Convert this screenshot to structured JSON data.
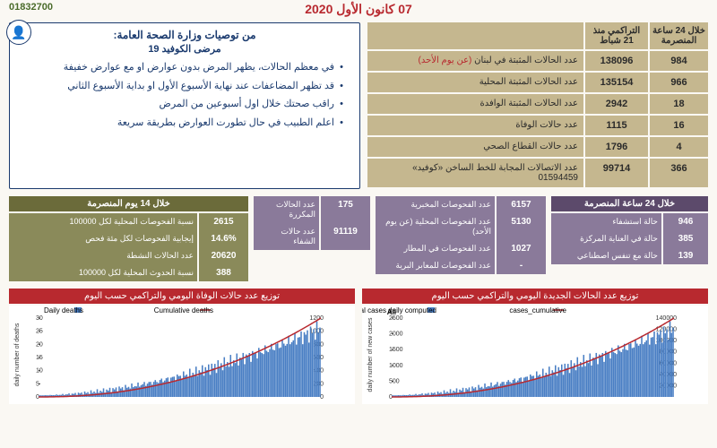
{
  "phone": "01832700",
  "date": "07 كانون الأول 2020",
  "mainStats": {
    "headers": {
      "c1": "خلال 24 ساعة المنصرمة",
      "c2": "التراكمي منذ 21 شباط"
    },
    "rows": [
      {
        "daily": "984",
        "cum": "138096",
        "label": "عدد الحالات المثبتة في لبنان",
        "labelRed": "(عن يوم الأحد)"
      },
      {
        "daily": "966",
        "cum": "135154",
        "label": "عدد الحالات المثبتة المحلية"
      },
      {
        "daily": "18",
        "cum": "2942",
        "label": "عدد الحالات المثبتة الوافدة"
      },
      {
        "daily": "16",
        "cum": "1115",
        "label": "عدد حالات الوفاة"
      },
      {
        "daily": "4",
        "cum": "1796",
        "label": "عدد حالات القطاع الصحي"
      },
      {
        "daily": "366",
        "cum": "99714",
        "label": "عدد الاتصالات المجابة للخط الساخن «كوفيد» 01594459"
      }
    ]
  },
  "reco": {
    "title": "من توصيات وزارة الصحة العامة:",
    "sub": "مرضى الكوفيد 19",
    "items": [
      "في معظم الحالات، يظهر المرض بدون عوارض او مع عوارض خفيفة",
      "قد تظهر المضاعفات عند نهاية الأسبوع الأول او بداية الأسبوع الثاني",
      "راقب صحتك خلال اول أسبوعين من المرض",
      "اعلم الطبيب في حال تطورت العوارض بطريقة سريعة"
    ]
  },
  "block24h": {
    "head": "خلال 24 ساعة المنصرمة",
    "rows": [
      {
        "n": "946",
        "l": "حالة استشفاء"
      },
      {
        "n": "385",
        "l": "حالة في العناية المركزة"
      },
      {
        "n": "139",
        "l": "حالة مع تنفس اصطناعي"
      }
    ]
  },
  "blockTests": {
    "rows": [
      {
        "n": "6157",
        "l": "عدد الفحوصات المخبرية"
      },
      {
        "n": "5130",
        "l": "عدد الفحوصات المحلية (عن يوم الأحد)"
      },
      {
        "n": "1027",
        "l": "عدد الفحوصات في المطار"
      },
      {
        "n": "-",
        "l": "عدد الفحوصات للمعابر البرية"
      }
    ]
  },
  "blockExtra": {
    "rows": [
      {
        "n": "175",
        "l": "عدد الحالات المكررة"
      },
      {
        "n": "91119",
        "l": "عدد حالات الشفاء"
      }
    ]
  },
  "block14d": {
    "head": "خلال 14 يوم المنصرمة",
    "rows": [
      {
        "n": "2615",
        "l": "نسبة الفحوصات المحلية لكل 100000"
      },
      {
        "n": "14.6%",
        "l": "إيجابية الفحوصات لكل مئة فحص"
      },
      {
        "n": "20620",
        "l": "عدد الحالات النشطة"
      },
      {
        "n": "388",
        "l": "نسبة الحدوث المحلية لكل 100000"
      }
    ]
  },
  "chartCases": {
    "title": "توزيع عدد الحالات الجديدة اليومي والتراكمي حسب اليوم",
    "legend1": "total cases daily computed",
    "legend2": "cases_cumulative",
    "type": "bar+line",
    "barColor": "#4a7fc4",
    "lineColor": "#b8292f",
    "yLeftLabel": "daily number of new cases",
    "yLeftMax": 2500,
    "yLeftTicks": [
      0,
      500,
      1000,
      1500,
      2000,
      2500
    ],
    "yRightMax": 140000,
    "yRightTicks": [
      20000,
      40000,
      60000,
      80000,
      100000,
      120000,
      140000
    ],
    "subTitle": "All"
  },
  "chartDeaths": {
    "title": "توزيع عدد حالات الوفاة اليومي والتراكمي حسب اليوم",
    "legend1": "Daily deaths",
    "legend2": "Cumulative deaths",
    "type": "bar+line",
    "barColor": "#4a7fc4",
    "lineColor": "#b8292f",
    "yLeftLabel": "daily number of deaths",
    "yLeftMax": 30,
    "yLeftTicks": [
      0,
      5,
      10,
      15,
      20,
      25,
      30
    ],
    "yRightMax": 1200,
    "yRightTicks": [
      0,
      200,
      400,
      600,
      800,
      1000,
      1200
    ]
  }
}
